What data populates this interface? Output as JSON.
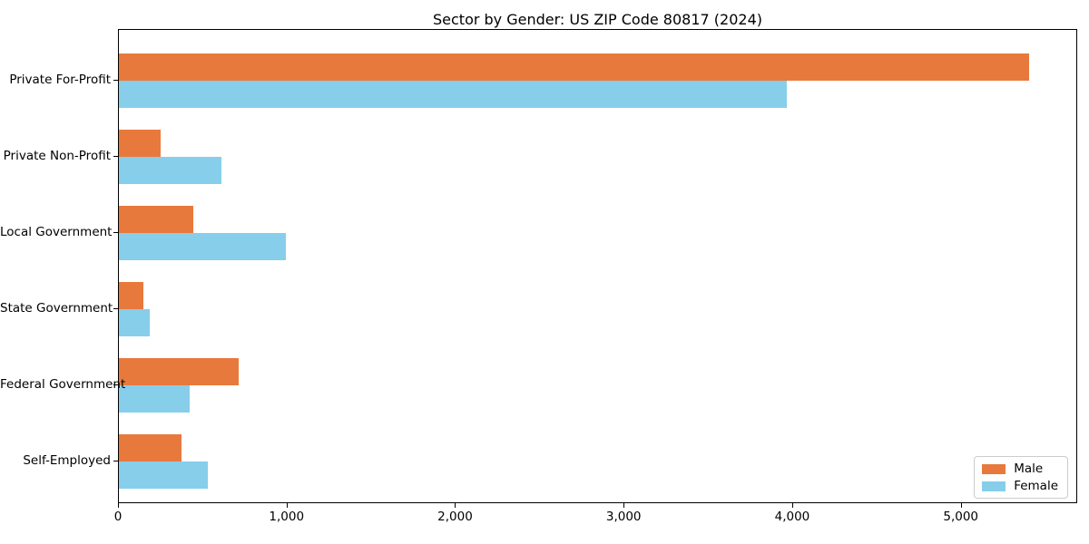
{
  "title": "Sector by Gender: US ZIP Code 80817 (2024)",
  "colors": {
    "male": "#E8793D",
    "female": "#87CEEB",
    "axis": "#000000",
    "legend_border": "#cccccc",
    "background": "#ffffff"
  },
  "chart_data": {
    "type": "bar",
    "orientation": "horizontal",
    "title": "Sector by Gender: US ZIP Code 80817 (2024)",
    "xlabel": "",
    "ylabel": "",
    "categories": [
      "Private For-Profit",
      "Private Non-Profit",
      "Local Government",
      "State Government",
      "Federal Government",
      "Self-Employed"
    ],
    "series": [
      {
        "name": "Male",
        "color": "#E8793D",
        "values": [
          5400,
          245,
          440,
          145,
          710,
          370
        ]
      },
      {
        "name": "Female",
        "color": "#87CEEB",
        "values": [
          3960,
          610,
          990,
          185,
          420,
          525
        ]
      }
    ],
    "xlim": [
      0,
      5680
    ],
    "xticks": [
      0,
      1000,
      2000,
      3000,
      4000,
      5000
    ],
    "xtick_labels": [
      "0",
      "1,000",
      "2,000",
      "3,000",
      "4,000",
      "5,000"
    ],
    "grid": false,
    "legend_position": "lower right"
  },
  "legend": {
    "items": [
      {
        "label": "Male"
      },
      {
        "label": "Female"
      }
    ]
  }
}
